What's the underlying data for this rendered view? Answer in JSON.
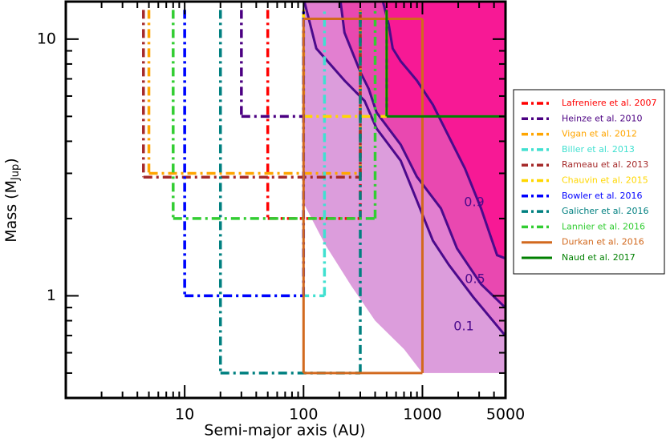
{
  "chart_data": {
    "type": "survey-limits",
    "xlabel": "Semi-major axis (AU)",
    "ylabel": {
      "text": "Mass (M",
      "sub": "Jup",
      "tail": ")"
    },
    "xscale": "log",
    "yscale": "log",
    "xlim": [
      1,
      5000
    ],
    "ylim": [
      0.4,
      14
    ],
    "xticks": [
      10,
      100,
      1000,
      5000
    ],
    "yticks": [
      1,
      10
    ],
    "xminor_ticks": [
      2,
      3,
      4,
      5,
      6,
      7,
      8,
      9,
      20,
      30,
      40,
      50,
      60,
      70,
      80,
      90,
      200,
      300,
      400,
      500,
      600,
      700,
      800,
      900,
      2000,
      3000,
      4000
    ],
    "yminor_ticks": [
      0.4,
      0.5,
      0.6,
      0.7,
      0.8,
      0.9,
      2,
      3,
      4,
      5,
      6,
      7,
      8,
      9
    ],
    "detection_region": {
      "color": "#dc9ddc",
      "a": [
        100,
        100,
        150,
        250,
        400,
        700,
        1000,
        5000,
        5000
      ],
      "mass": [
        14,
        2.3,
        1.6,
        1.1,
        0.8,
        0.62,
        0.5,
        0.5,
        14
      ]
    },
    "contours": [
      {
        "level": 0.1,
        "color": "#4b0a8c",
        "fill": "#e27fd0",
        "a": [
          102,
          128,
          221,
          326,
          412,
          657,
          897,
          1224,
          1670,
          2667,
          4966
        ],
        "mass": [
          13.9,
          9.2,
          6.9,
          5.75,
          4.48,
          3.36,
          2.35,
          1.64,
          1.32,
          0.99,
          0.7
        ]
      },
      {
        "level": 0.5,
        "color": "#4b0a8c",
        "fill": "#e948b0",
        "a": [
          205,
          221,
          302,
          353,
          412,
          657,
          897,
          1430,
          1954,
          3112,
          4966
        ],
        "mass": [
          13.9,
          10.6,
          7.4,
          6.4,
          5.17,
          3.88,
          2.91,
          2.19,
          1.53,
          1.11,
          0.9
        ]
      },
      {
        "level": 0.9,
        "color": "#4b0a8c",
        "fill": "#f71995",
        "a": [
          467,
          520,
          562,
          657,
          897,
          1224,
          1670,
          2280,
          3112,
          4246,
          4966
        ],
        "mass": [
          13.9,
          11.4,
          9.2,
          8.2,
          6.9,
          5.55,
          4.17,
          3.13,
          2.19,
          1.44,
          1.4
        ]
      }
    ],
    "series": [
      {
        "name": "Lafreniere et al. 2007",
        "color": "#ff0000",
        "style": "dashdot",
        "a": [
          50,
          300
        ],
        "mass": [
          2,
          13
        ]
      },
      {
        "name": "Heinze et al. 2010",
        "color": "#4b0082",
        "style": "dashdot",
        "a": [
          30,
          100
        ],
        "mass": [
          5,
          13
        ]
      },
      {
        "name": "Vigan et al. 2012",
        "color": "#ffa500",
        "style": "dashdot",
        "a": [
          5,
          300
        ],
        "mass": [
          3,
          13
        ]
      },
      {
        "name": "Biller et al. 2013",
        "color": "#40e0d0",
        "style": "dashdot",
        "a": [
          10,
          150
        ],
        "mass": [
          1,
          13
        ]
      },
      {
        "name": "Rameau et al. 2013",
        "color": "#a52a2a",
        "style": "dashdot",
        "a": [
          4.5,
          300
        ],
        "mass": [
          2.9,
          13
        ]
      },
      {
        "name": "Chauvin et al. 2015",
        "color": "#ffd700",
        "style": "dashdot",
        "a": [
          100,
          500
        ],
        "mass": [
          5,
          13
        ]
      },
      {
        "name": "Bowler et al. 2016",
        "color": "#0000ff",
        "style": "dashdot",
        "a": [
          10,
          100
        ],
        "mass": [
          1,
          13
        ]
      },
      {
        "name": "Galicher et al. 2016",
        "color": "#008080",
        "style": "dashdot",
        "a": [
          20,
          300
        ],
        "mass": [
          0.5,
          13
        ]
      },
      {
        "name": "Lannier et al. 2016",
        "color": "#32cd32",
        "style": "dashdot",
        "a": [
          8,
          400
        ],
        "mass": [
          2,
          13
        ]
      },
      {
        "name": "Durkan et al. 2016",
        "color": "#d2691e",
        "style": "solid",
        "closed": true,
        "a": [
          100,
          1000
        ],
        "mass": [
          0.5,
          12
        ]
      },
      {
        "name": "Naud et al. 2017",
        "color": "#008000",
        "style": "solid",
        "a": [
          500,
          5000
        ],
        "mass": [
          5,
          13
        ]
      }
    ]
  }
}
